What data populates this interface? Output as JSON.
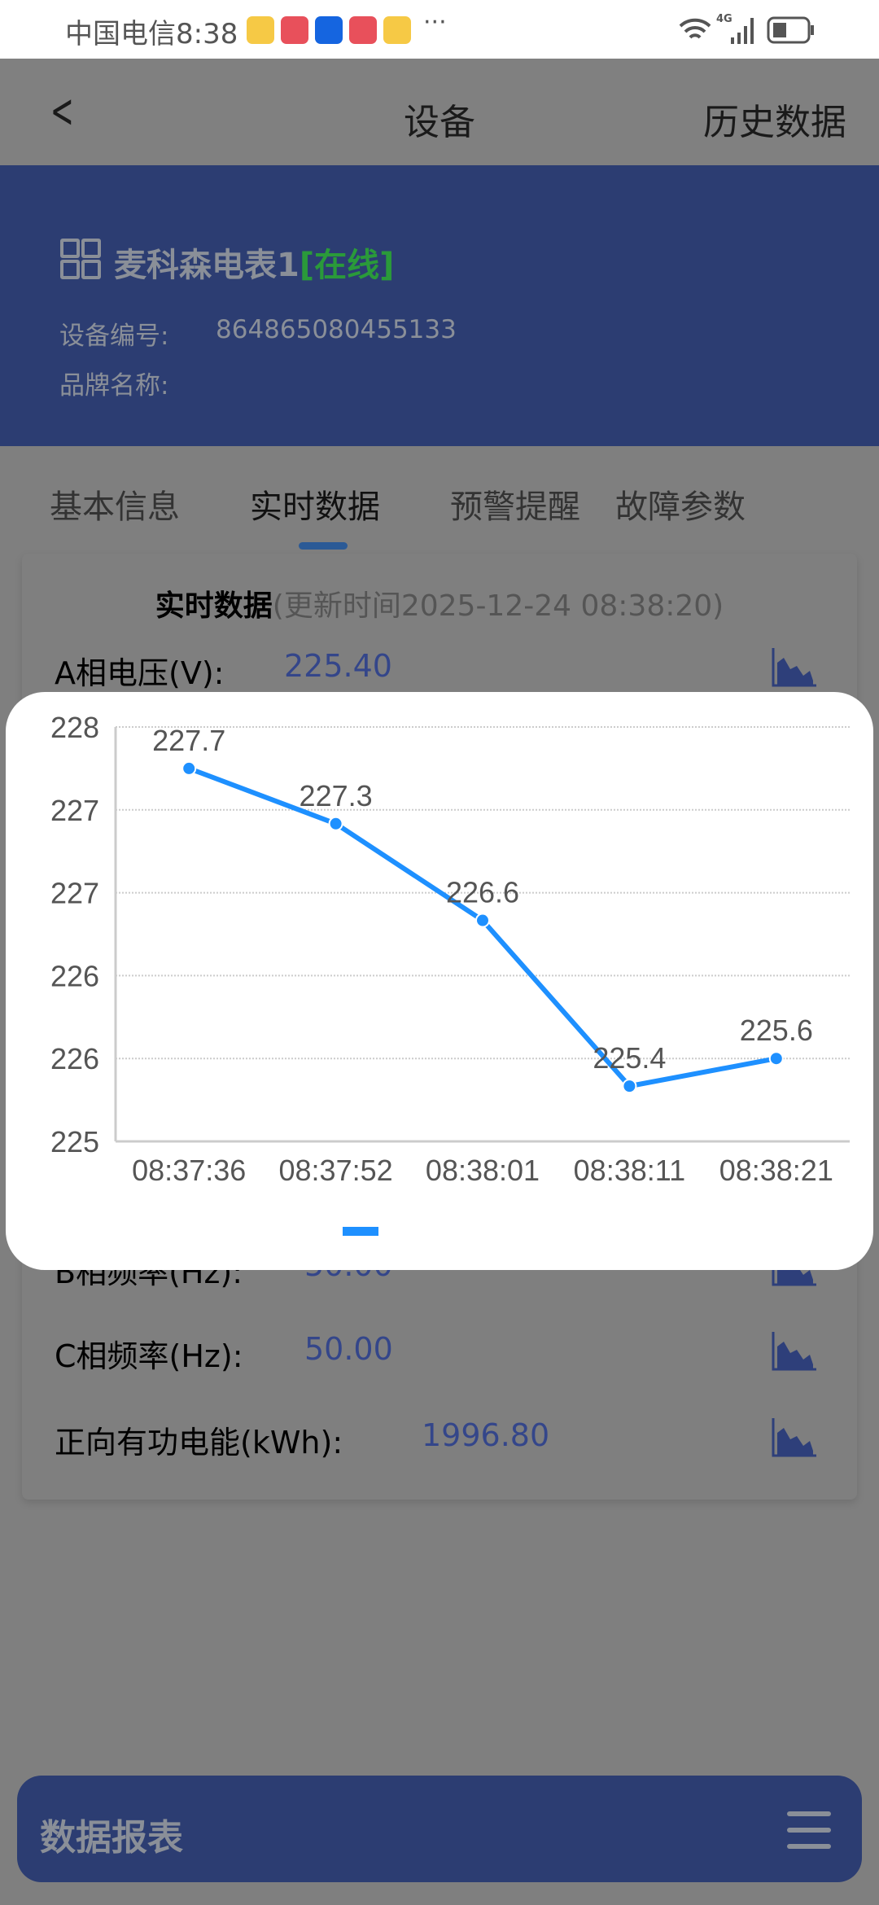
{
  "status_bar": {
    "carrier": "中国电信",
    "time": "8:38",
    "more": "···",
    "network": "4G",
    "icons": [
      "weibo-icon",
      "huawei-store-icon",
      "bulb-icon",
      "huawei-store-icon",
      "weibo-icon",
      "wifi-icon",
      "signal-icon",
      "battery-icon"
    ]
  },
  "nav": {
    "back": "<",
    "title": "设备",
    "right_action": "历史数据"
  },
  "device": {
    "name": "麦科森电表1",
    "status": "[在线]",
    "id_label": "设备编号:",
    "id_value": "864865080455133",
    "brand_label": "品牌名称:",
    "brand_value": ""
  },
  "tabs": [
    {
      "label": "基本信息",
      "active": false
    },
    {
      "label": "实时数据",
      "active": true
    },
    {
      "label": "预警提醒",
      "active": false
    },
    {
      "label": "故障参数",
      "active": false
    }
  ],
  "realtime": {
    "title": "实时数据",
    "updated": "(更新时间2025-12-24 08:38:20)",
    "rows": [
      {
        "label": "A相电压(V):",
        "value": "225.40"
      },
      {
        "label": "B相频率(Hz):",
        "value": "50.00"
      },
      {
        "label": "C相频率(Hz):",
        "value": "50.00"
      },
      {
        "label": "正向有功电能(kWh):",
        "value": "1996.80"
      }
    ]
  },
  "bottom_bar": {
    "label": "数据报表"
  },
  "colors": {
    "line": "#1e90ff",
    "header": "#2c3d72",
    "online": "#2a9a3a",
    "value": "#34468a"
  },
  "chart_data": {
    "type": "line",
    "x": [
      "08:37:36",
      "08:37:52",
      "08:38:01",
      "08:38:11",
      "08:38:21"
    ],
    "series": [
      {
        "values": [
          227.7,
          227.3,
          226.6,
          225.4,
          225.6
        ]
      }
    ],
    "data_labels": [
      "227.7",
      "227.3",
      "226.6",
      "225.4",
      "225.6"
    ],
    "ylim": [
      225,
      228
    ],
    "yticks": [
      225,
      225.6,
      226.2,
      226.8,
      227.4,
      228
    ],
    "ytick_labels": [
      "225",
      "226",
      "226",
      "227",
      "227",
      "228"
    ],
    "grid": true,
    "legend": "bottom"
  }
}
